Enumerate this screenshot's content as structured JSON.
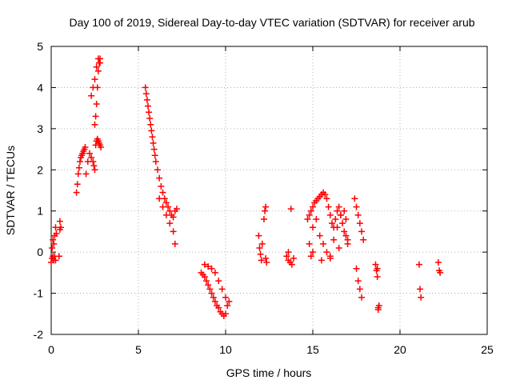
{
  "chart_data": {
    "type": "scatter",
    "title": "Day 100 of 2019, Sidereal Day-to-day VTEC variation (SDTVAR) for receiver arub",
    "xlabel": "GPS time / hours",
    "ylabel": "SDTVAR / TECUs",
    "xlim": [
      0,
      25
    ],
    "ylim": [
      -2,
      5
    ],
    "xticks": [
      0,
      5,
      10,
      15,
      20,
      25
    ],
    "yticks": [
      -2,
      -1,
      0,
      1,
      2,
      3,
      4,
      5
    ],
    "grid": true,
    "marker": "+",
    "color": "#ff0000",
    "series": [
      {
        "name": "SDTVAR",
        "x": [
          0.0,
          0.05,
          0.1,
          0.15,
          0.2,
          0.25,
          0.05,
          0.1,
          0.15,
          0.2,
          0.25,
          0.3,
          0.45,
          0.5,
          0.5,
          0.55,
          1.45,
          1.5,
          1.55,
          1.6,
          1.65,
          1.7,
          1.75,
          1.8,
          1.85,
          1.9,
          1.95,
          2.0,
          2.1,
          2.2,
          2.3,
          2.4,
          2.45,
          2.5,
          2.55,
          2.6,
          2.65,
          2.7,
          2.75,
          2.8,
          2.85,
          2.5,
          2.55,
          2.6,
          2.65,
          2.7,
          2.75,
          2.8,
          2.3,
          2.4,
          2.5,
          2.6,
          2.7,
          2.8,
          5.4,
          5.45,
          5.5,
          5.55,
          5.6,
          5.65,
          5.7,
          5.75,
          5.8,
          5.85,
          5.9,
          5.95,
          6.0,
          6.1,
          6.2,
          6.3,
          6.4,
          6.5,
          6.6,
          6.7,
          6.8,
          6.9,
          7.0,
          7.1,
          7.2,
          6.2,
          6.4,
          6.6,
          6.8,
          7.0,
          7.1,
          8.6,
          8.7,
          8.8,
          8.9,
          9.0,
          9.1,
          9.2,
          9.3,
          9.4,
          9.5,
          9.6,
          9.7,
          9.8,
          9.9,
          10.0,
          10.1,
          10.2,
          8.8,
          9.0,
          9.2,
          9.4,
          9.6,
          9.8,
          10.0,
          11.9,
          11.95,
          12.0,
          12.05,
          12.1,
          12.2,
          12.25,
          12.3,
          12.3,
          12.35,
          13.5,
          13.6,
          13.7,
          13.8,
          13.9,
          13.75,
          13.6,
          14.7,
          14.8,
          14.9,
          15.0,
          15.1,
          15.2,
          15.3,
          15.4,
          15.5,
          15.6,
          15.7,
          15.8,
          15.9,
          16.0,
          16.1,
          16.2,
          16.3,
          16.4,
          16.5,
          16.6,
          16.7,
          16.8,
          16.9,
          17.0,
          14.8,
          15.0,
          15.2,
          15.4,
          15.6,
          15.8,
          16.0,
          16.2,
          16.4,
          16.6,
          16.8,
          16.9,
          15.0,
          15.5,
          16.0,
          16.5,
          17.0,
          14.9,
          17.4,
          17.5,
          17.6,
          17.7,
          17.8,
          17.9,
          17.5,
          17.6,
          17.7,
          17.8,
          18.6,
          18.65,
          18.7,
          18.75,
          18.8,
          18.7,
          18.75,
          21.1,
          21.15,
          21.2,
          22.2,
          22.25,
          22.3
        ],
        "y": [
          -0.25,
          -0.15,
          -0.1,
          0.2,
          0.4,
          0.6,
          0.1,
          0.3,
          -0.2,
          -0.1,
          -0.2,
          0.45,
          -0.1,
          0.55,
          0.75,
          0.6,
          1.45,
          1.65,
          1.9,
          2.05,
          2.2,
          2.3,
          2.35,
          2.4,
          2.45,
          2.5,
          2.55,
          1.9,
          2.2,
          2.4,
          2.3,
          2.2,
          2.1,
          2.0,
          2.6,
          2.7,
          2.75,
          2.7,
          2.65,
          2.6,
          2.55,
          3.1,
          3.3,
          3.6,
          4.0,
          4.4,
          4.6,
          4.7,
          3.8,
          4.0,
          4.2,
          4.5,
          4.7,
          4.6,
          4.0,
          3.85,
          3.7,
          3.55,
          3.4,
          3.25,
          3.1,
          2.95,
          2.8,
          2.65,
          2.5,
          2.35,
          2.2,
          2.0,
          1.8,
          1.6,
          1.45,
          1.3,
          1.2,
          1.1,
          1.0,
          0.9,
          0.85,
          1.0,
          1.05,
          1.3,
          1.1,
          0.9,
          0.7,
          0.5,
          0.2,
          -0.5,
          -0.55,
          -0.6,
          -0.7,
          -0.8,
          -0.9,
          -1.0,
          -1.1,
          -1.2,
          -1.3,
          -1.35,
          -1.45,
          -1.5,
          -1.55,
          -1.5,
          -1.3,
          -1.2,
          -0.3,
          -0.35,
          -0.4,
          -0.5,
          -0.7,
          -0.9,
          -1.1,
          0.4,
          0.1,
          -0.05,
          -0.2,
          0.2,
          0.8,
          1.0,
          1.1,
          -0.15,
          -0.25,
          -0.1,
          -0.2,
          -0.25,
          -0.3,
          -0.15,
          1.05,
          0.0,
          0.8,
          0.9,
          1.0,
          1.1,
          1.2,
          1.25,
          1.3,
          1.35,
          1.4,
          1.45,
          1.4,
          1.3,
          1.1,
          0.9,
          0.7,
          0.6,
          0.8,
          1.0,
          1.1,
          0.9,
          0.7,
          0.5,
          0.4,
          0.3,
          0.2,
          0.6,
          0.8,
          0.4,
          0.2,
          0.0,
          -0.1,
          0.3,
          0.6,
          0.9,
          1.0,
          0.8,
          0.0,
          -0.2,
          -0.15,
          0.1,
          0.2,
          -0.1,
          1.3,
          1.1,
          0.9,
          0.7,
          0.5,
          0.3,
          -0.4,
          -0.7,
          -0.9,
          -1.1,
          -0.3,
          -0.45,
          -0.6,
          -1.35,
          -1.3,
          -0.4,
          -1.4,
          -0.3,
          -0.9,
          -1.1,
          -0.25,
          -0.45,
          -0.5
        ]
      }
    ]
  }
}
